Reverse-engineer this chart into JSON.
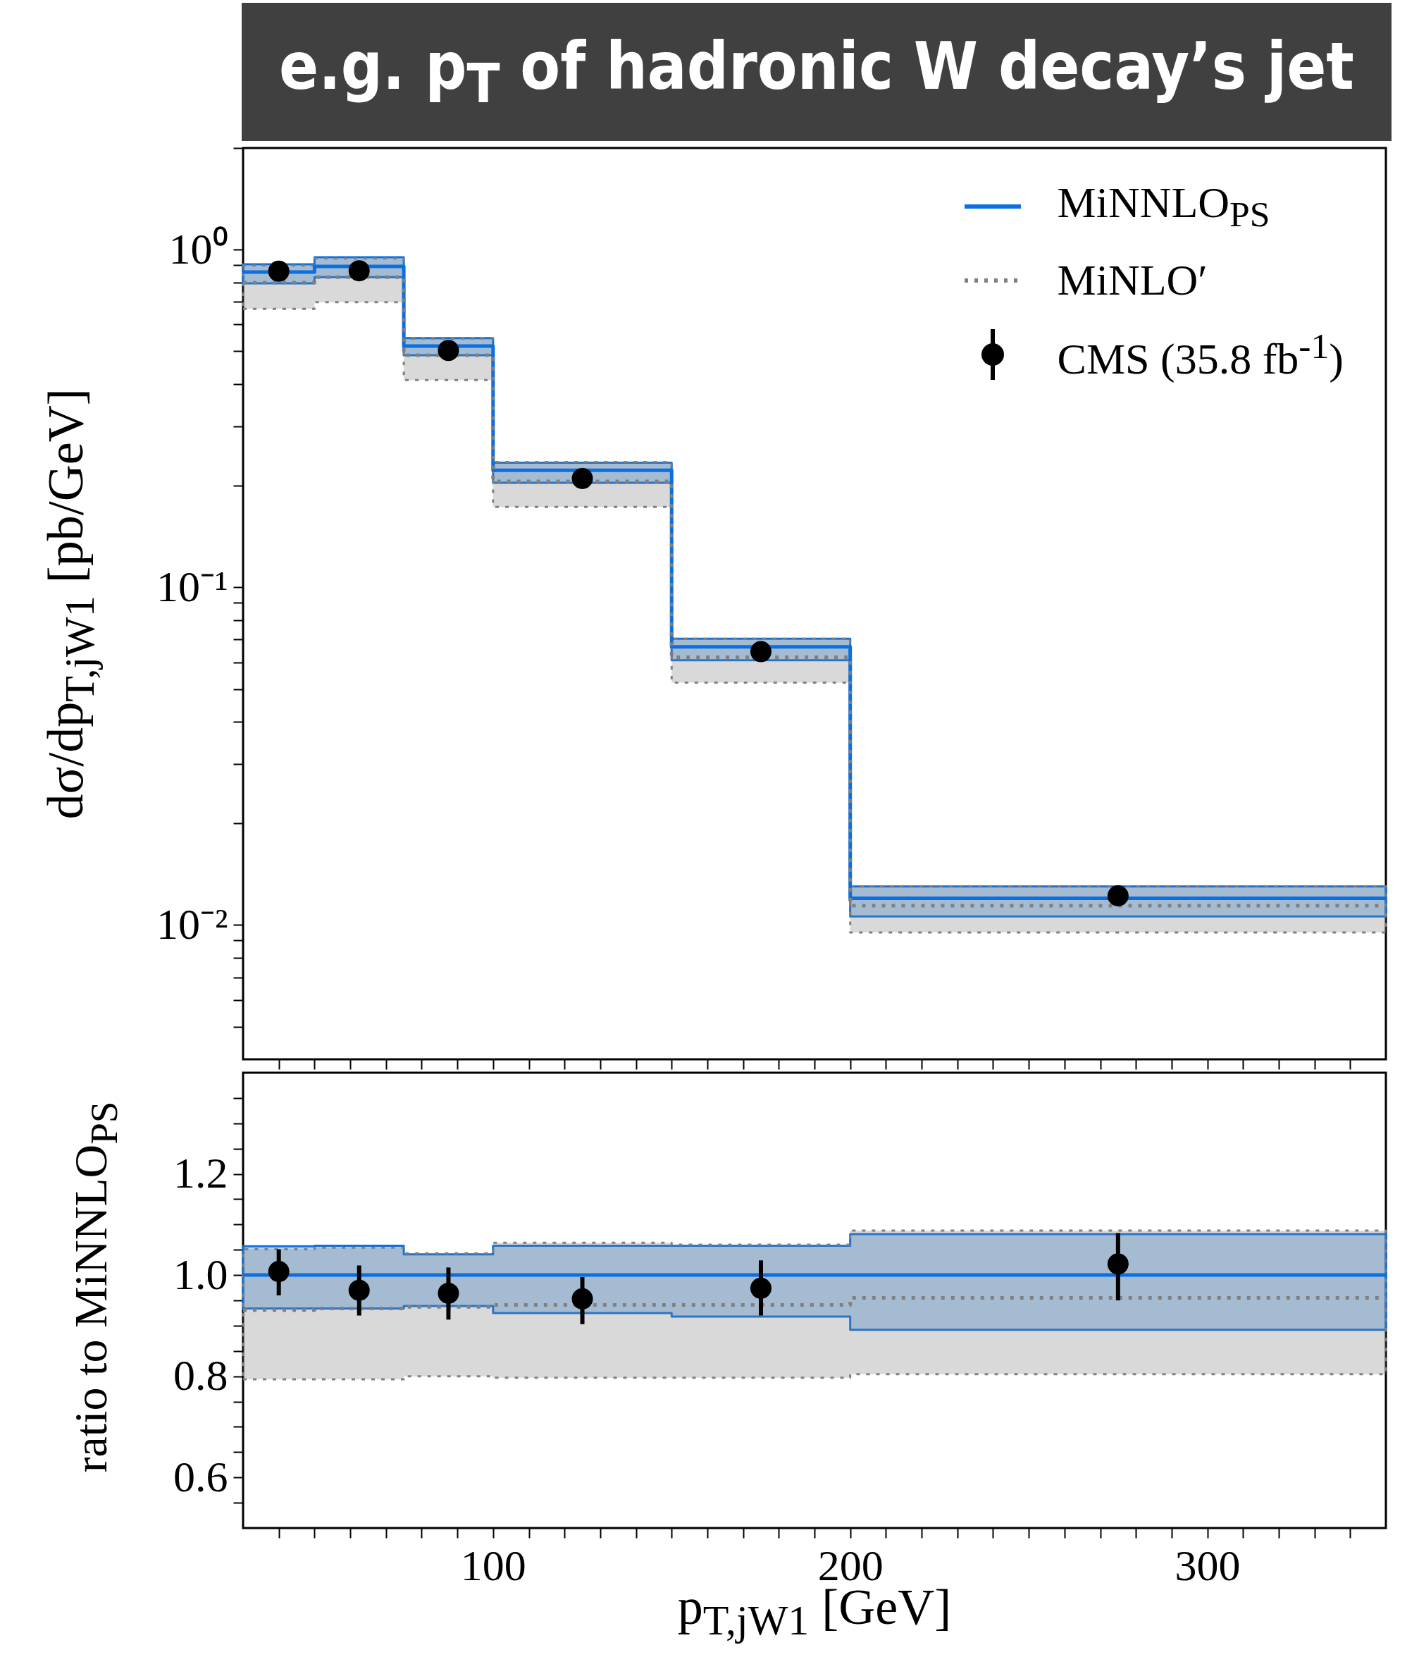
{
  "chart_data": [
    {
      "type": "step",
      "title": "e.g. p$_{T}$ of hadronic W decay’s jet",
      "ylabel": "dσ/dp$_{T,jW1}$ [pb/GeV]",
      "log": "y",
      "legend": "top right",
      "tick_labels": "y",
      "xlim": [
        30,
        350
      ],
      "xticks": [
        {
          "value": 40,
          "label": null
        },
        {
          "value": 50,
          "label": null
        },
        {
          "value": 60,
          "label": null
        },
        {
          "value": 70,
          "label": null
        },
        {
          "value": 80,
          "label": null
        },
        {
          "value": 90,
          "label": null
        },
        100,
        {
          "value": 110,
          "label": null
        },
        {
          "value": 120,
          "label": null
        },
        {
          "value": 130,
          "label": null
        },
        {
          "value": 140,
          "label": null
        },
        {
          "value": 150,
          "label": null
        },
        {
          "value": 160,
          "label": null
        },
        {
          "value": 170,
          "label": null
        },
        {
          "value": 180,
          "label": null
        },
        {
          "value": 190,
          "label": null
        },
        200,
        {
          "value": 210,
          "label": null
        },
        {
          "value": 220,
          "label": null
        },
        {
          "value": 230,
          "label": null
        },
        {
          "value": 240,
          "label": null
        },
        {
          "value": 250,
          "label": null
        },
        {
          "value": 260,
          "label": null
        },
        {
          "value": 270,
          "label": null
        },
        {
          "value": 280,
          "label": null
        },
        {
          "value": 290,
          "label": null
        },
        300,
        {
          "value": 310,
          "label": null
        },
        {
          "value": 320,
          "label": null
        },
        {
          "value": 330,
          "label": null
        },
        {
          "value": 340,
          "label": null
        }
      ],
      "ylim": [
        0.004,
        2
      ],
      "yticks": [
        {
          "value": 0.005,
          "label": null
        },
        {
          "value": 0.006,
          "label": null
        },
        {
          "value": 0.007,
          "label": null
        },
        {
          "value": 0.008,
          "label": null
        },
        {
          "value": 0.009,
          "label": null
        },
        {
          "value": 0.01,
          "label": "10⁻²"
        },
        {
          "value": 0.02,
          "label": null
        },
        {
          "value": 0.03,
          "label": null
        },
        {
          "value": 0.04,
          "label": null
        },
        {
          "value": 0.05,
          "label": null
        },
        {
          "value": 0.06,
          "label": null
        },
        {
          "value": 0.07,
          "label": null
        },
        {
          "value": 0.08,
          "label": null
        },
        {
          "value": 0.09,
          "label": null
        },
        {
          "value": 0.1,
          "label": "10⁻¹"
        },
        {
          "value": 0.2,
          "label": null
        },
        {
          "value": 0.3,
          "label": null
        },
        {
          "value": 0.4,
          "label": null
        },
        {
          "value": 0.5,
          "label": null
        },
        {
          "value": 0.6,
          "label": null
        },
        {
          "value": 0.7,
          "label": null
        },
        {
          "value": 0.8,
          "label": null
        },
        {
          "value": 0.9,
          "label": null
        },
        {
          "value": 1,
          "label": "10⁰"
        },
        {
          "value": 2,
          "label": null
        }
      ],
      "series": [
        {
          "name": "MiNNLO$_{PS}$",
          "type": "step",
          "color": "#0a6fdf",
          "line_style": "solid",
          "x": [
            30,
            50,
            75,
            100,
            150,
            200,
            350
          ],
          "values": [
            0.858,
            0.892,
            0.518,
            0.222,
            0.0666,
            0.012,
            0.012
          ],
          "lower": [
            0.795,
            0.829,
            0.487,
            0.204,
            0.0608,
            0.0106,
            0.0106
          ],
          "upper": [
            0.905,
            0.95,
            0.547,
            0.234,
            0.0704,
            0.013,
            0.013
          ]
        },
        {
          "name": "MiNLO′",
          "type": "step",
          "color": "#808080",
          "line_style": "dotted",
          "x": [
            30,
            50,
            75,
            100,
            150,
            200,
            350
          ],
          "values": [
            0.799,
            0.829,
            0.487,
            0.206,
            0.0621,
            0.0114,
            0.0114
          ],
          "lower": [
            0.668,
            0.699,
            0.411,
            0.173,
            0.0522,
            0.0095,
            0.0095
          ],
          "upper": [
            0.897,
            0.941,
            0.545,
            0.235,
            0.0704,
            0.013,
            0.013
          ]
        },
        {
          "name": "CMS (35.8 fb$^{-1}$)",
          "type": "scatter",
          "color": "#000000",
          "marker": "circle",
          "x": [
            40,
            62.5,
            87.5,
            125,
            175,
            275
          ],
          "values": [
            0.863,
            0.866,
            0.503,
            0.21,
            0.0645,
            0.0122
          ]
        }
      ]
    },
    {
      "type": "step",
      "ylabel": "ratio to MiNNLO$_{PS}$",
      "xlabel": "p$_{T,jW1}$ [GeV]",
      "xlim": [
        30,
        350
      ],
      "xticks": [
        {
          "value": 40,
          "label": null
        },
        {
          "value": 50,
          "label": null
        },
        {
          "value": 60,
          "label": null
        },
        {
          "value": 70,
          "label": null
        },
        {
          "value": 80,
          "label": null
        },
        {
          "value": 90,
          "label": null
        },
        100,
        {
          "value": 110,
          "label": null
        },
        {
          "value": 120,
          "label": null
        },
        {
          "value": 130,
          "label": null
        },
        {
          "value": 140,
          "label": null
        },
        {
          "value": 150,
          "label": null
        },
        {
          "value": 160,
          "label": null
        },
        {
          "value": 170,
          "label": null
        },
        {
          "value": 180,
          "label": null
        },
        {
          "value": 190,
          "label": null
        },
        200,
        {
          "value": 210,
          "label": null
        },
        {
          "value": 220,
          "label": null
        },
        {
          "value": 230,
          "label": null
        },
        {
          "value": 240,
          "label": null
        },
        {
          "value": 250,
          "label": null
        },
        {
          "value": 260,
          "label": null
        },
        {
          "value": 270,
          "label": null
        },
        {
          "value": 280,
          "label": null
        },
        {
          "value": 290,
          "label": null
        },
        300,
        {
          "value": 310,
          "label": null
        },
        {
          "value": 320,
          "label": null
        },
        {
          "value": 330,
          "label": null
        },
        {
          "value": 340,
          "label": null
        }
      ],
      "ylim": [
        0.5,
        1.4
      ],
      "yticks": [
        {
          "value": 0.55,
          "label": null
        },
        0.6,
        {
          "value": 0.65,
          "label": null
        },
        {
          "value": 0.7,
          "label": null
        },
        {
          "value": 0.75,
          "label": null
        },
        0.8,
        {
          "value": 0.85,
          "label": null
        },
        {
          "value": 0.9,
          "label": null
        },
        {
          "value": 0.95,
          "label": null
        },
        {
          "value": 1,
          "label": "1.0"
        },
        {
          "value": 1.05,
          "label": null
        },
        {
          "value": 1.1,
          "label": null
        },
        {
          "value": 1.15,
          "label": null
        },
        1.2,
        {
          "value": 1.25,
          "label": null
        },
        {
          "value": 1.3,
          "label": null
        },
        {
          "value": 1.35,
          "label": null
        }
      ],
      "series": [
        {
          "type": "step",
          "color": "#0a6fdf",
          "line_style": "solid",
          "x": [
            30,
            50,
            75,
            100,
            150,
            200,
            350
          ],
          "values": [
            1,
            1,
            1,
            1,
            1,
            1,
            1
          ],
          "lower": [
            0.934,
            0.934,
            0.939,
            0.925,
            0.918,
            0.892,
            0.892
          ],
          "upper": [
            1.057,
            1.058,
            1.041,
            1.058,
            1.058,
            1.081,
            1.081
          ]
        },
        {
          "type": "step",
          "color": "#808080",
          "line_style": "dotted",
          "x": [
            30,
            50,
            75,
            100,
            150,
            200,
            350
          ],
          "values": [
            0.931,
            0.934,
            0.937,
            0.941,
            0.941,
            0.955,
            0.955
          ],
          "lower": [
            0.794,
            0.794,
            0.8,
            0.797,
            0.797,
            0.804,
            0.804
          ],
          "upper": [
            1.051,
            1.054,
            1.043,
            1.064,
            1.06,
            1.088,
            1.088
          ]
        },
        {
          "type": "scatter",
          "color": "#000000",
          "marker": "circle",
          "x": [
            40,
            62.5,
            87.5,
            125,
            175,
            275
          ],
          "values": [
            1.007,
            0.97,
            0.964,
            0.953,
            0.974,
            1.022
          ],
          "errors": [
            [
              0.96,
              1.051
            ],
            [
              0.92,
              1.019
            ],
            [
              0.912,
              1.015
            ],
            [
              0.903,
              0.996
            ],
            [
              0.92,
              1.029
            ],
            [
              0.95,
              1.083
            ]
          ]
        }
      ]
    }
  ]
}
